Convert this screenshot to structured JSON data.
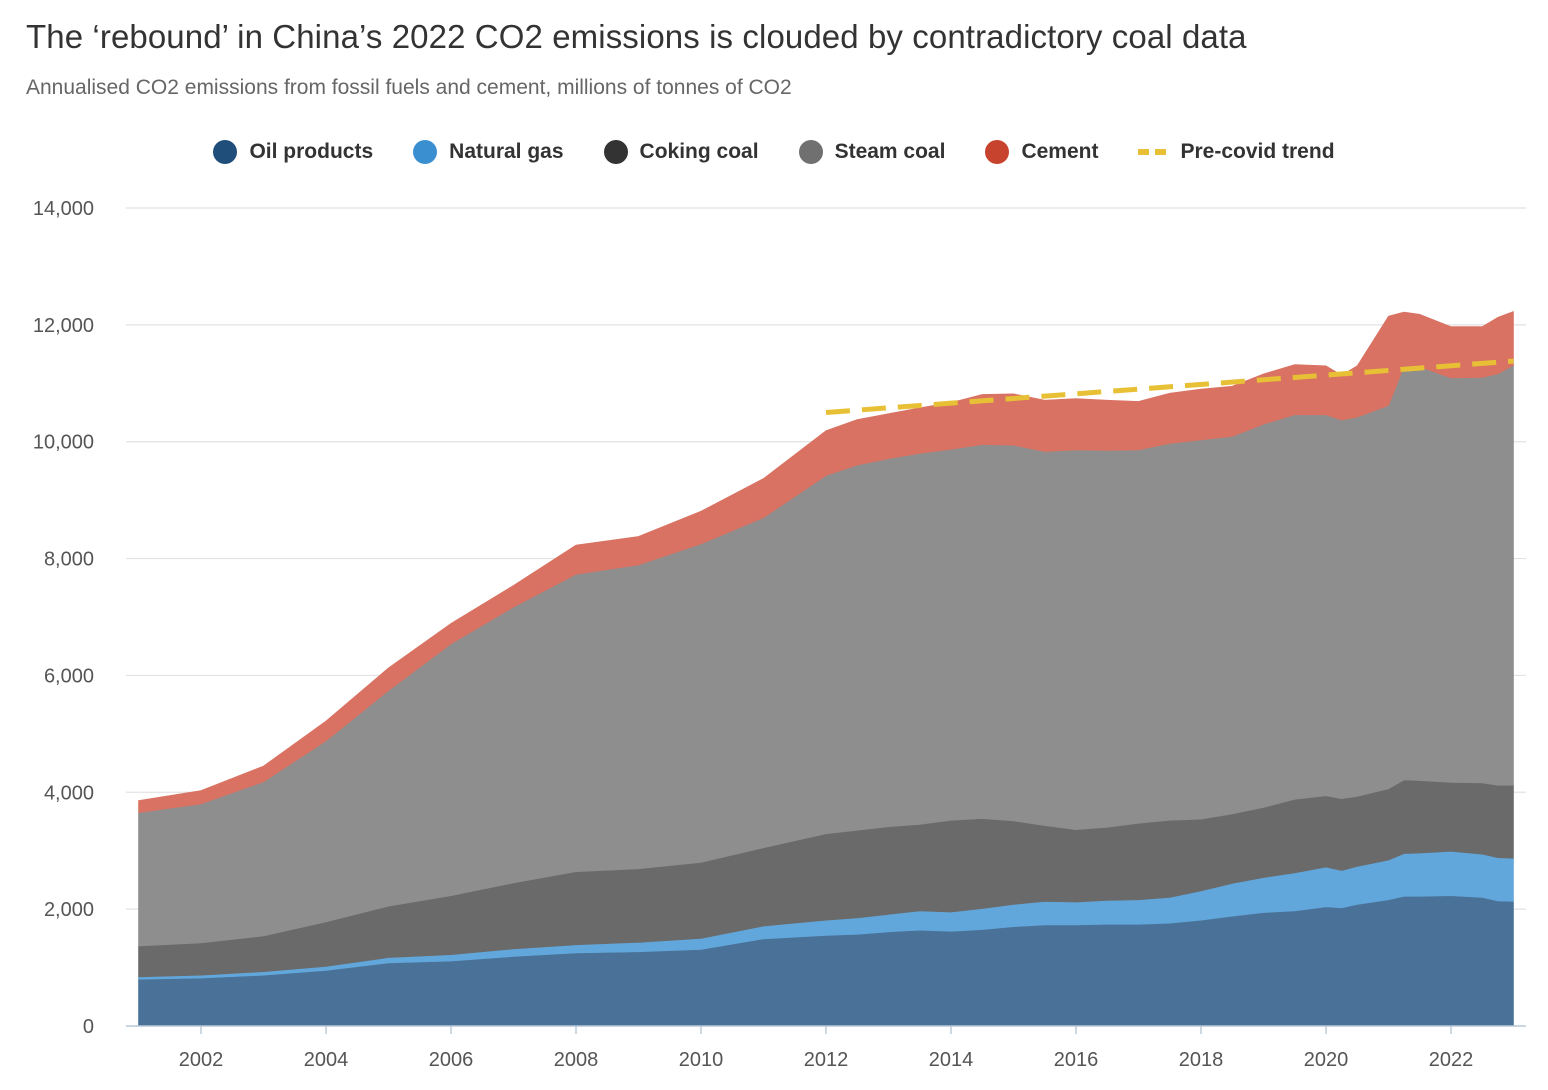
{
  "title": "The ‘rebound’ in China’s 2022 CO2 emissions is clouded by contradictory coal data",
  "subtitle": "Annualised CO2 emissions from fossil fuels and cement, millions of tonnes of CO2",
  "legend": [
    {
      "label": "Oil products",
      "color": "#1f4e7a",
      "shape": "dot"
    },
    {
      "label": "Natural gas",
      "color": "#3a8fd1",
      "shape": "dot"
    },
    {
      "label": "Coking coal",
      "color": "#333333",
      "shape": "dot"
    },
    {
      "label": "Steam coal",
      "color": "#707070",
      "shape": "dot"
    },
    {
      "label": "Cement",
      "color": "#c8432e",
      "shape": "dot"
    },
    {
      "label": "Pre-covid trend",
      "color": "#e8c036",
      "shape": "dash"
    }
  ],
  "chart_data": {
    "type": "area",
    "stacked": true,
    "xlim": [
      2000.8,
      2023.2
    ],
    "ylim": [
      0,
      14000
    ],
    "yticks": [
      0,
      2000,
      4000,
      6000,
      8000,
      10000,
      12000,
      14000
    ],
    "ytick_labels": [
      "0",
      "2,000",
      "4,000",
      "6,000",
      "8,000",
      "10,000",
      "12,000",
      "14,000"
    ],
    "xticks": [
      2002,
      2004,
      2006,
      2008,
      2010,
      2012,
      2014,
      2016,
      2018,
      2020,
      2022
    ],
    "xtick_labels": [
      "2002",
      "2004",
      "2006",
      "2008",
      "2010",
      "2012",
      "2014",
      "2016",
      "2018",
      "2020",
      "2022"
    ],
    "grid": "horizontal",
    "legend_position": "top-center",
    "x": [
      2001.0,
      2002.0,
      2003.0,
      2004.0,
      2005.0,
      2006.0,
      2007.0,
      2008.0,
      2009.0,
      2010.0,
      2011.0,
      2012.0,
      2012.5,
      2013.0,
      2013.5,
      2014.0,
      2014.5,
      2015.0,
      2015.5,
      2016.0,
      2016.5,
      2017.0,
      2017.5,
      2018.0,
      2018.5,
      2019.0,
      2019.5,
      2020.0,
      2020.25,
      2020.5,
      2021.0,
      2021.25,
      2021.5,
      2022.0,
      2022.5,
      2022.75,
      2023.0
    ],
    "series": [
      {
        "name": "Oil products",
        "color": "#4a7298",
        "values": [
          800,
          820,
          870,
          950,
          1080,
          1110,
          1190,
          1250,
          1270,
          1310,
          1490,
          1550,
          1570,
          1610,
          1640,
          1620,
          1650,
          1700,
          1730,
          1730,
          1740,
          1740,
          1760,
          1810,
          1880,
          1940,
          1970,
          2040,
          2020,
          2080,
          2160,
          2220,
          2220,
          2230,
          2200,
          2140,
          2130
        ]
      },
      {
        "name": "Natural gas",
        "color": "#62a7db",
        "values": [
          40,
          50,
          60,
          70,
          90,
          110,
          130,
          140,
          160,
          190,
          220,
          260,
          280,
          300,
          330,
          330,
          360,
          380,
          400,
          390,
          410,
          420,
          440,
          500,
          560,
          600,
          650,
          680,
          640,
          650,
          680,
          730,
          740,
          760,
          740,
          740,
          740
        ]
      },
      {
        "name": "Coking coal",
        "color": "#6a6a6a",
        "values": [
          530,
          550,
          610,
          760,
          880,
          1010,
          1130,
          1250,
          1260,
          1300,
          1340,
          1480,
          1500,
          1500,
          1480,
          1570,
          1540,
          1430,
          1300,
          1240,
          1250,
          1310,
          1320,
          1230,
          1190,
          1200,
          1260,
          1220,
          1230,
          1200,
          1220,
          1260,
          1240,
          1180,
          1220,
          1240,
          1250
        ]
      },
      {
        "name": "Steam coal",
        "color": "#8e8e8e",
        "values": [
          2280,
          2380,
          2640,
          3100,
          3690,
          4310,
          4720,
          5090,
          5200,
          5450,
          5650,
          6130,
          6250,
          6300,
          6350,
          6350,
          6400,
          6430,
          6400,
          6500,
          6450,
          6390,
          6450,
          6490,
          6460,
          6560,
          6580,
          6520,
          6480,
          6490,
          6560,
          7080,
          7080,
          6920,
          6940,
          7040,
          7190
        ]
      },
      {
        "name": "Cement",
        "color": "#d97262",
        "values": [
          210,
          230,
          270,
          340,
          390,
          350,
          370,
          500,
          490,
          560,
          670,
          770,
          780,
          770,
          780,
          800,
          860,
          880,
          880,
          880,
          860,
          830,
          860,
          870,
          860,
          860,
          860,
          840,
          770,
          880,
          1530,
          930,
          900,
          880,
          870,
          970,
          920
        ]
      }
    ],
    "trend": {
      "name": "Pre-covid trend",
      "color": "#e8c036",
      "x": [
        2012.0,
        2023.0
      ],
      "y": [
        10500,
        11380
      ]
    }
  }
}
